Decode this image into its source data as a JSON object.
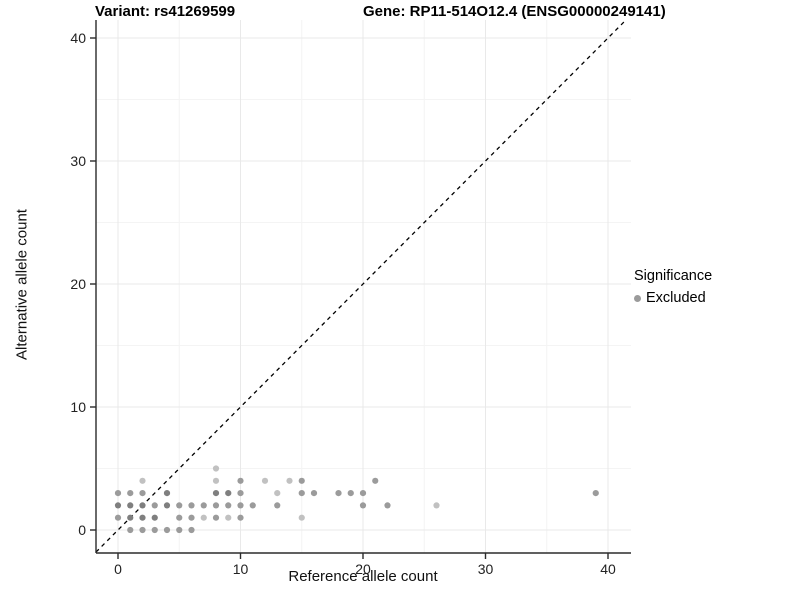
{
  "header": {
    "variant_title": "Variant: rs41269599",
    "gene_title": "Gene: RP11-514O12.4 (ENSG00000249141)"
  },
  "chart_data": {
    "type": "scatter",
    "variant_label": "Variant: rs41269599",
    "gene_label": "Gene: RP11-514O12.4 (ENSG00000249141)",
    "xlabel": "Reference allele count",
    "ylabel": "Alternative allele count",
    "xlim": [
      -1.8,
      42.2
    ],
    "ylim": [
      -1.9,
      41.5
    ],
    "xticks": [
      0,
      10,
      20,
      30,
      40
    ],
    "yticks": [
      0,
      10,
      20,
      30,
      40
    ],
    "minor_xticks": [
      5,
      15,
      25,
      35
    ],
    "minor_yticks": [
      5,
      15,
      25,
      35
    ],
    "grid": "major+minor",
    "reference_line": {
      "type": "abline",
      "slope": 1,
      "intercept": 0,
      "style": "dashed",
      "color": "#000000"
    },
    "legend": {
      "title": "Significance",
      "position": "right",
      "items": [
        {
          "label": "Excluded",
          "color": "#9b9b9b"
        }
      ]
    },
    "colors": {
      "axis_line": "#2b2b2b",
      "major_grid": "#e9e9e9",
      "minor_grid": "#f4f4f4",
      "point_dark": "#7f7f7f",
      "point_mid": "#9b9b9b",
      "point_light": "#c1c1c1"
    },
    "series": [
      {
        "name": "Excluded",
        "points": [
          [
            1,
            0,
            "mid"
          ],
          [
            2,
            0,
            "mid"
          ],
          [
            3,
            0,
            "mid"
          ],
          [
            4,
            0,
            "mid"
          ],
          [
            5,
            0,
            "mid"
          ],
          [
            6,
            0,
            "mid"
          ],
          [
            0,
            1,
            "mid"
          ],
          [
            1,
            1,
            "dark"
          ],
          [
            2,
            1,
            "dark"
          ],
          [
            3,
            1,
            "dark"
          ],
          [
            5,
            1,
            "mid"
          ],
          [
            6,
            1,
            "mid"
          ],
          [
            7,
            1,
            "light"
          ],
          [
            8,
            1,
            "mid"
          ],
          [
            9,
            1,
            "light"
          ],
          [
            10,
            1,
            "mid"
          ],
          [
            15,
            1,
            "light"
          ],
          [
            0,
            2,
            "dark"
          ],
          [
            1,
            2,
            "dark"
          ],
          [
            2,
            2,
            "dark"
          ],
          [
            3,
            2,
            "mid"
          ],
          [
            4,
            2,
            "dark"
          ],
          [
            5,
            2,
            "mid"
          ],
          [
            6,
            2,
            "mid"
          ],
          [
            7,
            2,
            "mid"
          ],
          [
            8,
            2,
            "mid"
          ],
          [
            9,
            2,
            "mid"
          ],
          [
            10,
            2,
            "mid"
          ],
          [
            11,
            2,
            "mid"
          ],
          [
            13,
            2,
            "mid"
          ],
          [
            20,
            2,
            "mid"
          ],
          [
            22,
            2,
            "mid"
          ],
          [
            26,
            2,
            "light"
          ],
          [
            0,
            3,
            "mid"
          ],
          [
            1,
            3,
            "mid"
          ],
          [
            2,
            3,
            "mid"
          ],
          [
            4,
            3,
            "dark"
          ],
          [
            8,
            3,
            "dark"
          ],
          [
            9,
            3,
            "dark"
          ],
          [
            10,
            3,
            "mid"
          ],
          [
            13,
            3,
            "light"
          ],
          [
            15,
            3,
            "mid"
          ],
          [
            16,
            3,
            "mid"
          ],
          [
            18,
            3,
            "mid"
          ],
          [
            19,
            3,
            "mid"
          ],
          [
            20,
            3,
            "mid"
          ],
          [
            39,
            3,
            "mid"
          ],
          [
            2,
            4,
            "light"
          ],
          [
            8,
            4,
            "light"
          ],
          [
            10,
            4,
            "mid"
          ],
          [
            12,
            4,
            "light"
          ],
          [
            14,
            4,
            "light"
          ],
          [
            15,
            4,
            "mid"
          ],
          [
            21,
            4,
            "mid"
          ],
          [
            8,
            5,
            "light"
          ]
        ]
      }
    ]
  }
}
